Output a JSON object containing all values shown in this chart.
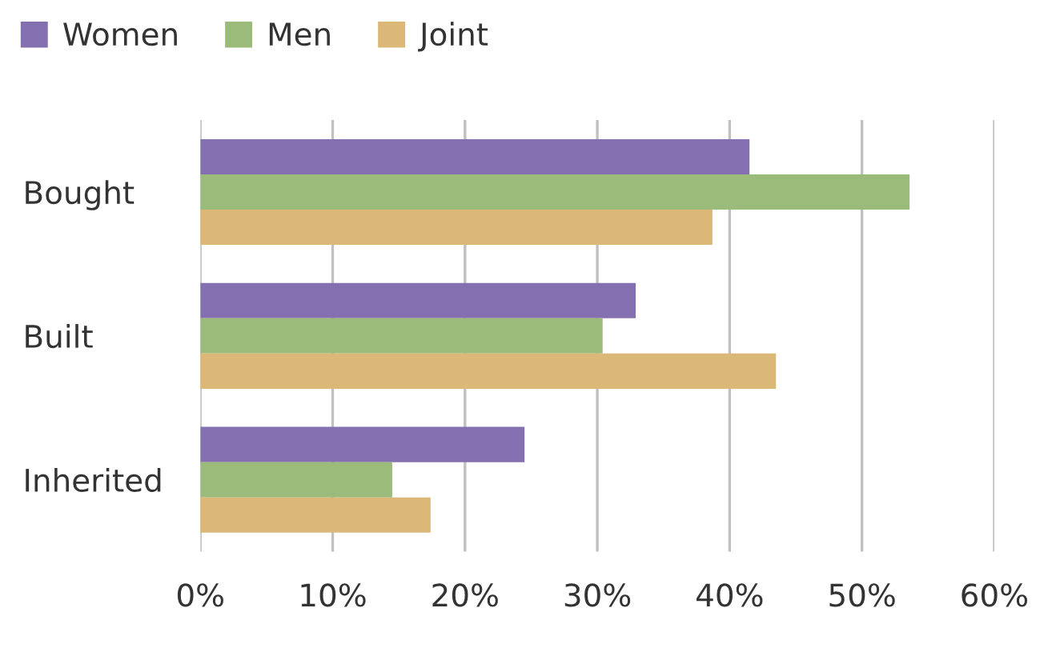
{
  "chart_data": {
    "type": "bar",
    "orientation": "horizontal",
    "categories": [
      "Bought",
      "Built",
      "Inherited"
    ],
    "series": [
      {
        "name": "Women",
        "color": "#8470b0",
        "values": [
          41.5,
          32.9,
          24.5
        ]
      },
      {
        "name": "Men",
        "color": "#9bbb7a",
        "values": [
          53.6,
          30.4,
          14.5
        ]
      },
      {
        "name": "Joint",
        "color": "#dcb878",
        "values": [
          38.7,
          43.5,
          17.4
        ]
      }
    ],
    "xlim": [
      0,
      60
    ],
    "xticks": [
      {
        "value": 0,
        "label": "0%"
      },
      {
        "value": 10,
        "label": "10%"
      },
      {
        "value": 20,
        "label": "20%"
      },
      {
        "value": 30,
        "label": "30%"
      },
      {
        "value": 40,
        "label": "40%"
      },
      {
        "value": 50,
        "label": "50%"
      },
      {
        "value": 60,
        "label": "60%"
      }
    ],
    "grid": "x",
    "legend": "top left"
  }
}
